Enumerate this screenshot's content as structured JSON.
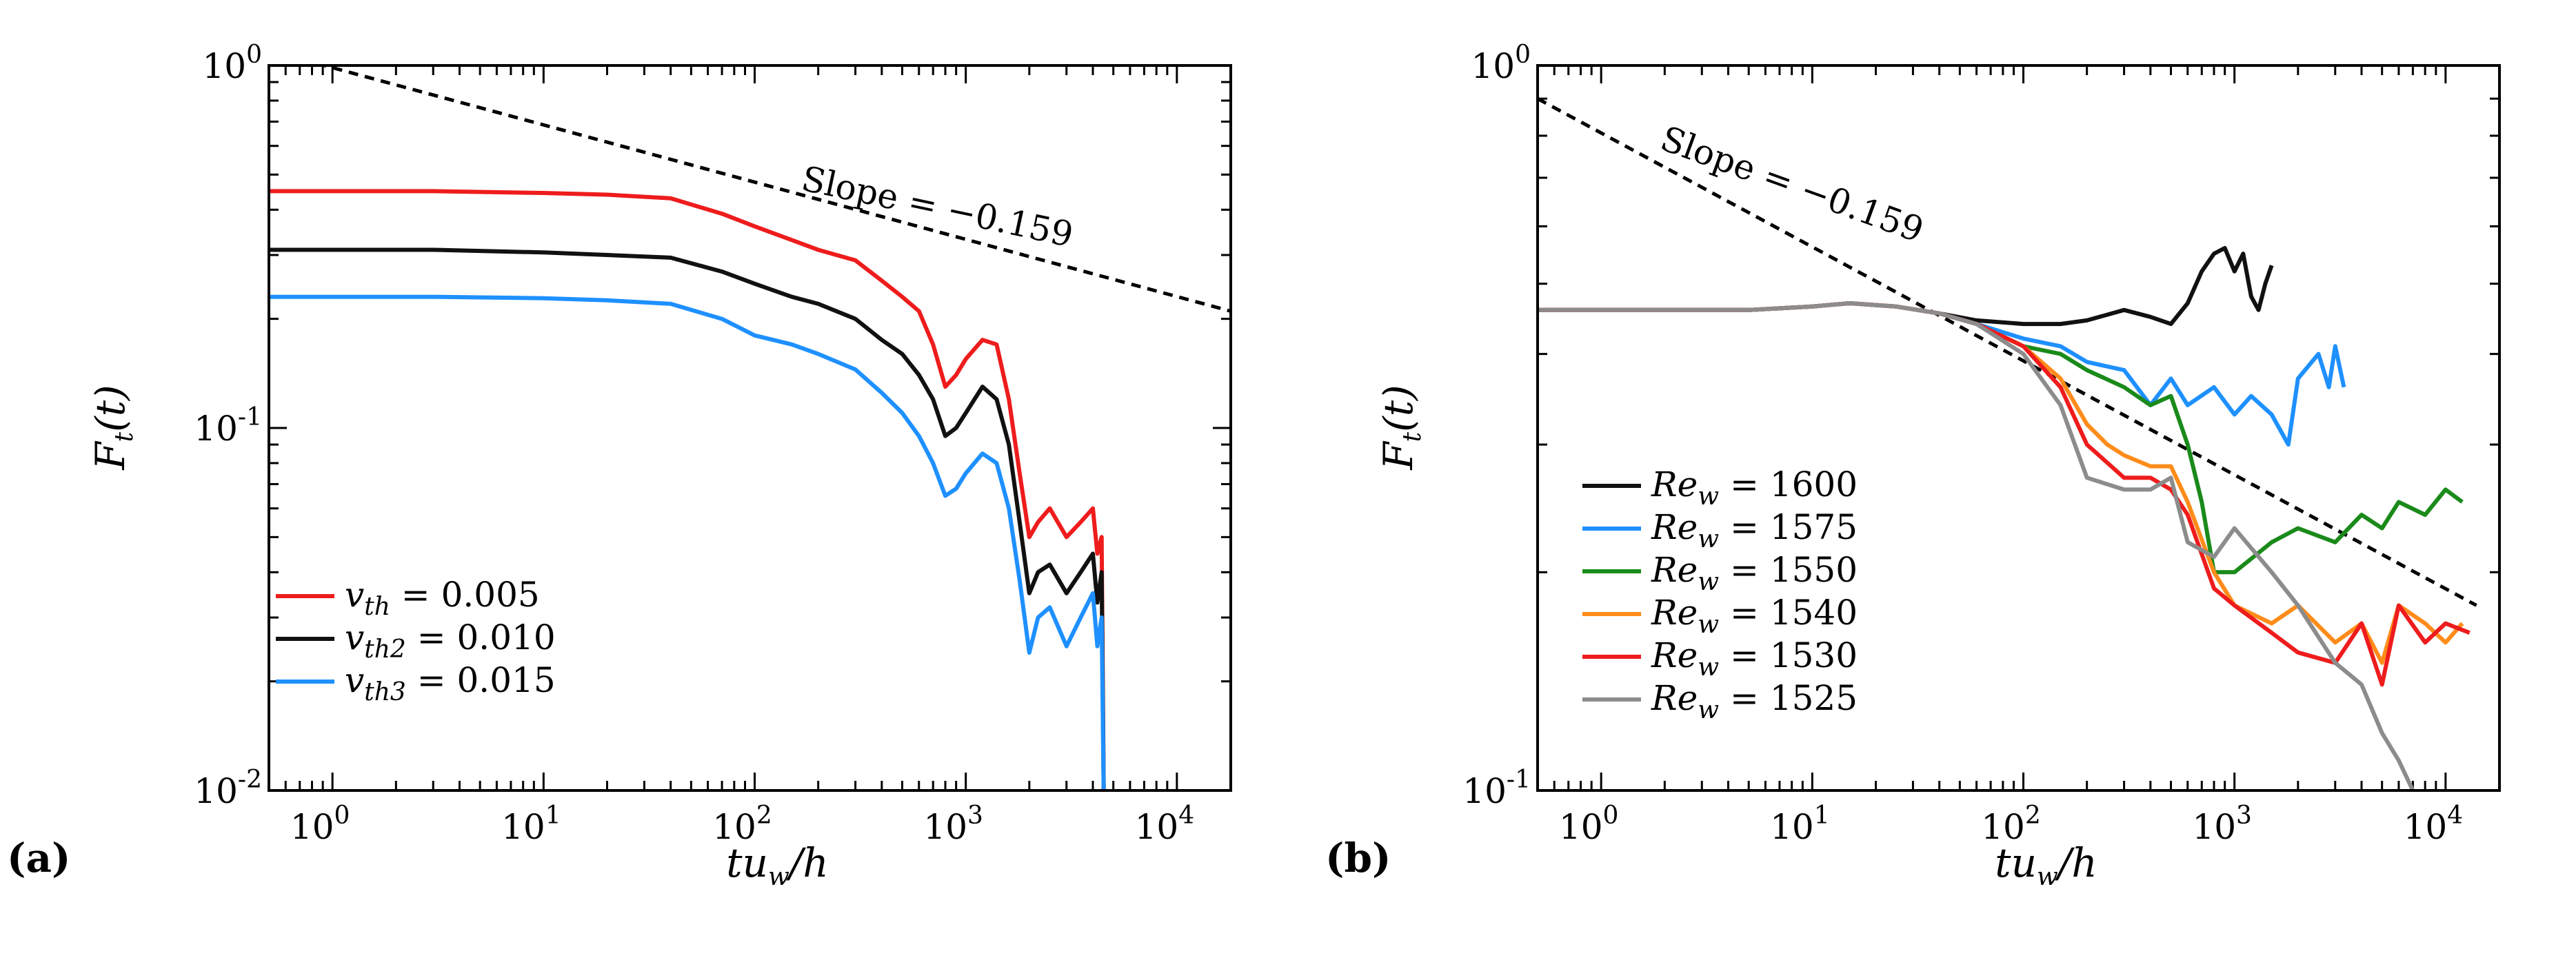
{
  "chart_data": [
    {
      "type": "line",
      "panel_label": "(a)",
      "xlabel": "tu_w/h",
      "ylabel": "F_t(t)",
      "x_scale": "log",
      "y_scale": "log",
      "xlim": [
        0.5,
        18000
      ],
      "ylim": [
        0.01,
        1.0
      ],
      "x_ticks": [
        {
          "value": 1,
          "base": "10",
          "exp": "0"
        },
        {
          "value": 10,
          "base": "10",
          "exp": "1"
        },
        {
          "value": 100,
          "base": "10",
          "exp": "2"
        },
        {
          "value": 1000,
          "base": "10",
          "exp": "3"
        },
        {
          "value": 10000,
          "base": "10",
          "exp": "4"
        }
      ],
      "y_ticks": [
        {
          "value": 1,
          "base": "10",
          "exp": "0"
        },
        {
          "value": 0.1,
          "base": "10",
          "exp": "-1"
        },
        {
          "value": 0.01,
          "base": "10",
          "exp": "-2"
        }
      ],
      "annotation": {
        "text": "Slope = −0.159",
        "rotation_deg": 12
      },
      "reference_line": {
        "x": [
          0.5,
          18000
        ],
        "y": [
          1.1,
          0.21
        ],
        "style": "dashed"
      },
      "legend_placement": "lower-left",
      "series": [
        {
          "name": "v_th = 0.005",
          "legend_sym": "v",
          "legend_sub": "th",
          "legend_value": " = 0.005",
          "color": "#ee1c1c",
          "x": [
            0.5,
            1,
            3,
            10,
            20,
            40,
            70,
            100,
            150,
            200,
            300,
            400,
            500,
            600,
            700,
            800,
            900,
            1000,
            1200,
            1400,
            1600,
            1800,
            2000,
            2200,
            2500,
            3000,
            3500,
            4000,
            4200,
            4400,
            4500
          ],
          "y": [
            0.45,
            0.45,
            0.45,
            0.445,
            0.44,
            0.43,
            0.39,
            0.36,
            0.33,
            0.31,
            0.29,
            0.255,
            0.23,
            0.21,
            0.17,
            0.13,
            0.14,
            0.155,
            0.175,
            0.17,
            0.12,
            0.075,
            0.05,
            0.055,
            0.06,
            0.05,
            0.055,
            0.06,
            0.045,
            0.05,
            0.01
          ]
        },
        {
          "name": "v_th2 = 0.010",
          "legend_sym": "v",
          "legend_sub": "th2",
          "legend_value": " = 0.010",
          "color": "#111111",
          "x": [
            0.5,
            1,
            3,
            10,
            20,
            40,
            70,
            100,
            150,
            200,
            300,
            400,
            500,
            600,
            700,
            800,
            900,
            1000,
            1200,
            1400,
            1600,
            1800,
            2000,
            2200,
            2500,
            3000,
            3500,
            4000,
            4200,
            4400,
            4500
          ],
          "y": [
            0.31,
            0.31,
            0.31,
            0.305,
            0.3,
            0.295,
            0.27,
            0.25,
            0.23,
            0.22,
            0.2,
            0.175,
            0.16,
            0.14,
            0.12,
            0.095,
            0.1,
            0.11,
            0.13,
            0.12,
            0.09,
            0.055,
            0.035,
            0.04,
            0.042,
            0.035,
            0.04,
            0.045,
            0.033,
            0.04,
            0.01
          ]
        },
        {
          "name": "v_th3 = 0.015",
          "legend_sym": "v",
          "legend_sub": "th3",
          "legend_value": " = 0.015",
          "color": "#1e90ff",
          "x": [
            0.5,
            1,
            3,
            10,
            20,
            40,
            70,
            100,
            150,
            200,
            300,
            400,
            500,
            600,
            700,
            800,
            900,
            1000,
            1200,
            1400,
            1600,
            1800,
            2000,
            2200,
            2500,
            3000,
            3500,
            4000,
            4200,
            4400,
            4500
          ],
          "y": [
            0.23,
            0.23,
            0.23,
            0.228,
            0.225,
            0.22,
            0.2,
            0.18,
            0.17,
            0.16,
            0.145,
            0.125,
            0.11,
            0.095,
            0.08,
            0.065,
            0.068,
            0.075,
            0.085,
            0.08,
            0.06,
            0.038,
            0.024,
            0.03,
            0.032,
            0.025,
            0.03,
            0.035,
            0.025,
            0.03,
            0.01
          ]
        }
      ]
    },
    {
      "type": "line",
      "panel_label": "(b)",
      "xlabel": "tu_w/h",
      "ylabel": "F_t(t)",
      "x_scale": "log",
      "y_scale": "log",
      "xlim": [
        0.5,
        18000
      ],
      "ylim": [
        0.1,
        1.0
      ],
      "x_ticks": [
        {
          "value": 1,
          "base": "10",
          "exp": "0"
        },
        {
          "value": 10,
          "base": "10",
          "exp": "1"
        },
        {
          "value": 100,
          "base": "10",
          "exp": "2"
        },
        {
          "value": 1000,
          "base": "10",
          "exp": "3"
        },
        {
          "value": 10000,
          "base": "10",
          "exp": "4"
        }
      ],
      "y_ticks": [
        {
          "value": 1,
          "base": "10",
          "exp": "0"
        },
        {
          "value": 0.1,
          "base": "10",
          "exp": "-1"
        }
      ],
      "annotation": {
        "text": "Slope = −0.159",
        "rotation_deg": 20
      },
      "reference_line": {
        "x": [
          0.5,
          14000
        ],
        "y": [
          0.9,
          0.18
        ],
        "style": "dashed"
      },
      "legend_placement": "lower-left",
      "series": [
        {
          "name": "Re_w = 1600",
          "legend_sym": "Re",
          "legend_sub": "w",
          "legend_value": " = 1600",
          "color": "#111111",
          "x": [
            0.5,
            2,
            5,
            10,
            15,
            25,
            40,
            60,
            100,
            150,
            200,
            300,
            400,
            500,
            600,
            700,
            800,
            900,
            1000,
            1100,
            1200,
            1300,
            1400,
            1500
          ],
          "y": [
            0.46,
            0.46,
            0.46,
            0.465,
            0.47,
            0.465,
            0.455,
            0.445,
            0.44,
            0.44,
            0.445,
            0.46,
            0.45,
            0.44,
            0.47,
            0.52,
            0.55,
            0.56,
            0.52,
            0.55,
            0.48,
            0.46,
            0.5,
            0.53
          ]
        },
        {
          "name": "Re_w = 1575",
          "legend_sym": "Re",
          "legend_sub": "w",
          "legend_value": " = 1575",
          "color": "#1e90ff",
          "x": [
            0.5,
            2,
            5,
            10,
            15,
            25,
            40,
            60,
            100,
            150,
            200,
            300,
            400,
            500,
            600,
            800,
            1000,
            1200,
            1500,
            1800,
            2000,
            2500,
            2800,
            3000,
            3300
          ],
          "y": [
            0.46,
            0.46,
            0.46,
            0.465,
            0.47,
            0.465,
            0.455,
            0.44,
            0.42,
            0.41,
            0.39,
            0.38,
            0.34,
            0.37,
            0.34,
            0.36,
            0.33,
            0.35,
            0.33,
            0.3,
            0.37,
            0.4,
            0.36,
            0.41,
            0.36
          ]
        },
        {
          "name": "Re_w = 1550",
          "legend_sym": "Re",
          "legend_sub": "w",
          "legend_value": " = 1550",
          "color": "#1a8a1a",
          "x": [
            0.5,
            2,
            5,
            10,
            15,
            25,
            40,
            60,
            100,
            150,
            200,
            300,
            400,
            500,
            600,
            700,
            800,
            1000,
            1500,
            2000,
            3000,
            4000,
            5000,
            6000,
            8000,
            10000,
            12000
          ],
          "y": [
            0.46,
            0.46,
            0.46,
            0.465,
            0.47,
            0.465,
            0.455,
            0.44,
            0.41,
            0.4,
            0.38,
            0.36,
            0.34,
            0.35,
            0.3,
            0.25,
            0.2,
            0.2,
            0.22,
            0.23,
            0.22,
            0.24,
            0.23,
            0.25,
            0.24,
            0.26,
            0.25
          ]
        },
        {
          "name": "Re_w = 1540",
          "legend_sym": "Re",
          "legend_sub": "w",
          "legend_value": " = 1540",
          "color": "#ff8c1a",
          "x": [
            0.5,
            2,
            5,
            10,
            15,
            25,
            40,
            60,
            100,
            150,
            200,
            250,
            300,
            400,
            500,
            600,
            800,
            1000,
            1500,
            2000,
            3000,
            4000,
            5000,
            6000,
            8000,
            10000,
            12000
          ],
          "y": [
            0.46,
            0.46,
            0.46,
            0.465,
            0.47,
            0.465,
            0.455,
            0.44,
            0.41,
            0.37,
            0.32,
            0.3,
            0.29,
            0.28,
            0.28,
            0.25,
            0.2,
            0.18,
            0.17,
            0.18,
            0.16,
            0.17,
            0.15,
            0.18,
            0.17,
            0.16,
            0.17
          ]
        },
        {
          "name": "Re_w = 1530",
          "legend_sym": "Re",
          "legend_sub": "w",
          "legend_value": " = 1530",
          "color": "#ee1c1c",
          "x": [
            0.5,
            2,
            5,
            10,
            15,
            25,
            40,
            60,
            100,
            150,
            200,
            300,
            400,
            500,
            600,
            800,
            1000,
            1500,
            2000,
            3000,
            4000,
            5000,
            6000,
            8000,
            10000,
            13000
          ],
          "y": [
            0.46,
            0.46,
            0.46,
            0.465,
            0.47,
            0.465,
            0.455,
            0.44,
            0.41,
            0.36,
            0.3,
            0.27,
            0.27,
            0.26,
            0.24,
            0.19,
            0.18,
            0.165,
            0.155,
            0.15,
            0.17,
            0.14,
            0.18,
            0.16,
            0.17,
            0.165
          ]
        },
        {
          "name": "Re_w = 1525",
          "legend_sym": "Re",
          "legend_sub": "w",
          "legend_value": " = 1525",
          "color": "#8c8c8c",
          "x": [
            0.5,
            2,
            5,
            10,
            15,
            25,
            40,
            60,
            100,
            150,
            200,
            300,
            400,
            500,
            600,
            800,
            1000,
            1500,
            2000,
            3000,
            4000,
            5000,
            6000,
            7000
          ],
          "y": [
            0.46,
            0.46,
            0.46,
            0.465,
            0.47,
            0.465,
            0.455,
            0.44,
            0.4,
            0.34,
            0.27,
            0.26,
            0.26,
            0.27,
            0.22,
            0.21,
            0.23,
            0.2,
            0.18,
            0.15,
            0.14,
            0.12,
            0.11,
            0.1
          ]
        }
      ]
    }
  ]
}
